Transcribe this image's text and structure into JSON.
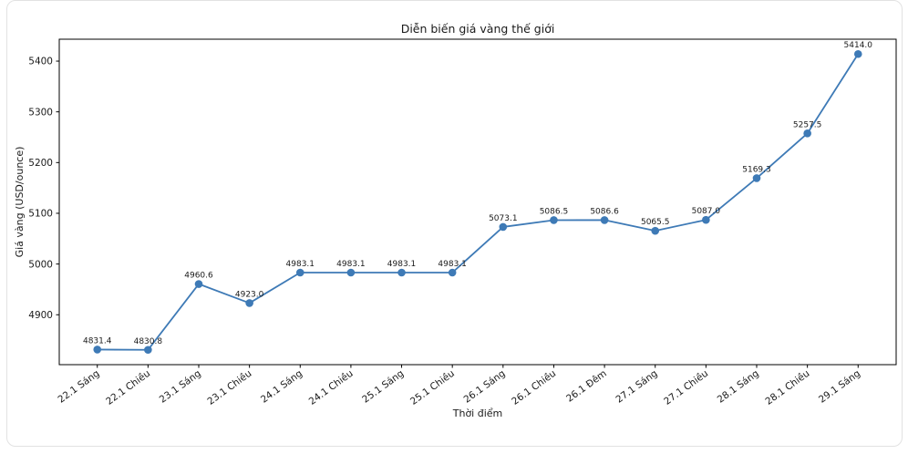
{
  "page": {
    "background": "#ffffff",
    "card_border_color": "#e2e2e2"
  },
  "chart_data": {
    "type": "line",
    "title": "Diễn biến giá vàng thế giới",
    "xlabel": "Thời điểm",
    "ylabel": "Giá vàng (USD/ounce)",
    "categories": [
      "22.1 Sáng",
      "22.1 Chiều",
      "23.1 Sáng",
      "23.1 Chiều",
      "24.1 Sáng",
      "24.1 Chiều",
      "25.1 Sáng",
      "25.1 Chiều",
      "26.1 Sáng",
      "26.1 Chiều",
      "26.1 Đêm",
      "27.1 Sáng",
      "27.1 Chiều",
      "28.1 Sáng",
      "28.1 Chiều",
      "29.1 Sáng"
    ],
    "values": [
      4831.4,
      4830.8,
      4960.6,
      4923.0,
      4983.1,
      4983.1,
      4983.1,
      4983.1,
      5073.1,
      5086.5,
      5086.6,
      5065.5,
      5087.0,
      5169.3,
      5257.5,
      5414.0
    ],
    "point_labels": [
      "4831.4",
      "4830.8",
      "4960.6",
      "4923.0",
      "4983.1",
      "4983.1",
      "4983.1",
      "4983.1",
      "5073.1",
      "5086.5",
      "5086.6",
      "5065.5",
      "5087.0",
      "5169.3",
      "5257.5",
      "5414.0"
    ],
    "y_ticks": [
      4900,
      5000,
      5100,
      5200,
      5300,
      5400
    ],
    "ylim": [
      4801.6,
      5443.2
    ],
    "line_color": "#3e7ab6",
    "marker": "circle",
    "grid": false,
    "legend_position": "none"
  }
}
